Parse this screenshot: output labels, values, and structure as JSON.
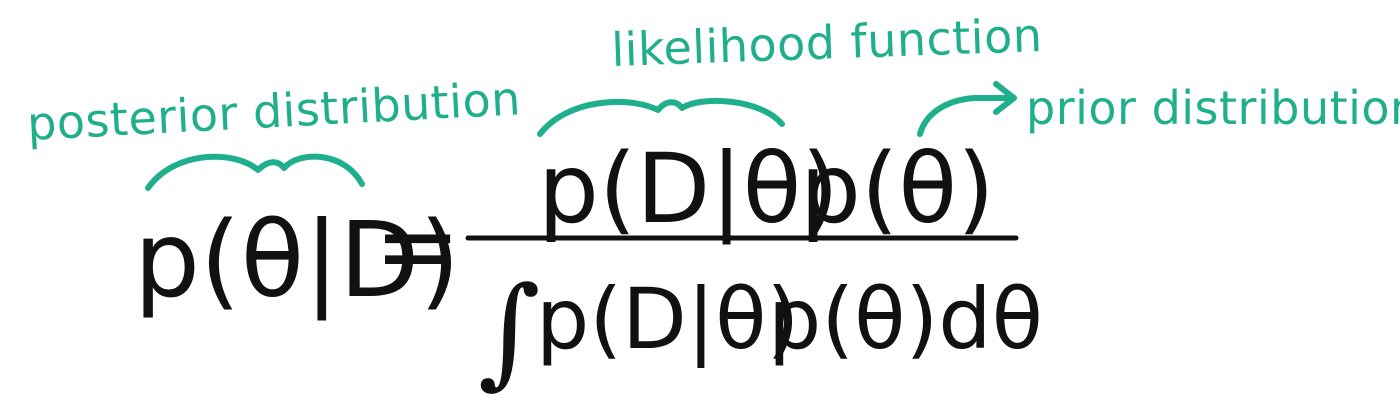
{
  "colors": {
    "accent": "#1FAF8C",
    "ink": "#111111",
    "background": "#FFFFFF"
  },
  "annotations": {
    "posterior": "posterior distribution",
    "likelihood": "likelihood function",
    "prior": "prior distribution"
  },
  "formula": {
    "lhs": "p(θ|D)",
    "equals": "=",
    "numerator_likelihood": "p(D|θ)",
    "numerator_prior": "p(θ)",
    "integral_sign": "∫",
    "denominator_likelihood": "p(D|θ)",
    "denominator_prior": "p(θ)dθ"
  }
}
